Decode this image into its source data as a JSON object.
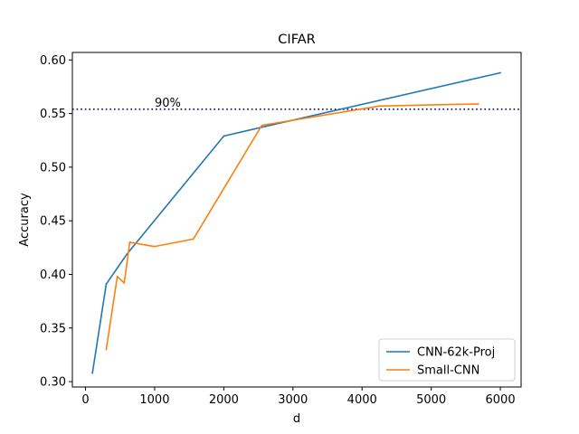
{
  "chart_data": {
    "type": "line",
    "title": "CIFAR",
    "xlabel": "d",
    "ylabel": "Accuracy",
    "xlim": [
      -190,
      6300
    ],
    "ylim": [
      0.295,
      0.607
    ],
    "xticks": [
      0,
      1000,
      2000,
      3000,
      4000,
      5000,
      6000
    ],
    "yticks": [
      0.3,
      0.35,
      0.4,
      0.45,
      0.5,
      0.55,
      0.6
    ],
    "xtick_labels": [
      "0",
      "1000",
      "2000",
      "3000",
      "4000",
      "5000",
      "6000"
    ],
    "ytick_labels": [
      "0.30",
      "0.35",
      "0.40",
      "0.45",
      "0.50",
      "0.55",
      "0.60"
    ],
    "grid": false,
    "legend_position": "lower right",
    "series": [
      {
        "name": "CNN-62k-Proj",
        "color": "#1f77b4",
        "x": [
          100,
          300,
          600,
          2000,
          2600,
          6000
        ],
        "y": [
          0.308,
          0.391,
          0.419,
          0.529,
          0.538,
          0.588
        ]
      },
      {
        "name": "Small-CNN",
        "color": "#ff7f0e",
        "x": [
          300,
          460,
          560,
          640,
          1000,
          1560,
          2550,
          4250,
          5680
        ],
        "y": [
          0.33,
          0.398,
          0.392,
          0.43,
          0.426,
          0.433,
          0.539,
          0.557,
          0.559
        ]
      }
    ],
    "reference_line": {
      "y": 0.554,
      "label": "90%",
      "label_x": 1000,
      "color": "#00008b",
      "style": "dotted"
    }
  }
}
